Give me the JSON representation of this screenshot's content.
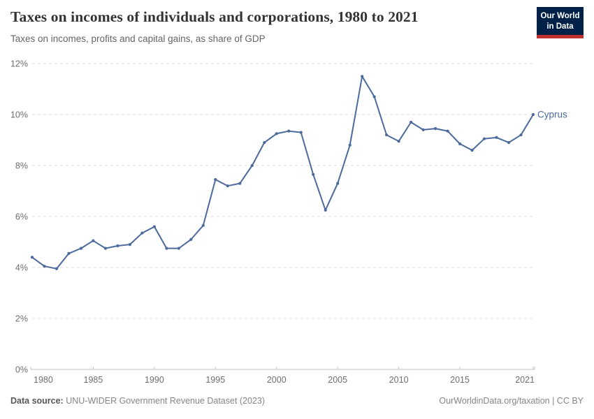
{
  "header": {
    "title": "Taxes on incomes of individuals and corporations, 1980 to 2021",
    "subtitle": "Taxes on incomes, profits and capital gains, as share of GDP",
    "logo": {
      "line1": "Our World",
      "line2": "in Data"
    }
  },
  "footer": {
    "source_label": "Data source:",
    "source_text": " UNU-WIDER Government Revenue Dataset (2023)",
    "link_text": "OurWorldinData.org/taxation | CC BY"
  },
  "colors": {
    "line": "#4C6A9C",
    "entity_label": "#4C6A9C",
    "grid": "#dddddd",
    "axis": "#c2c2c2",
    "axis_label": "#6e6e6e",
    "logo_bg": "#002147",
    "logo_red": "#c0322e"
  },
  "chart_data": {
    "type": "line",
    "title": "Taxes on incomes of individuals and corporations, 1980 to 2021",
    "subtitle": "Taxes on incomes, profits and capital gains, as share of GDP",
    "entity": "Cyprus",
    "unit": "%",
    "grid": true,
    "legend_position": "end-of-line-label",
    "xlim": [
      1980,
      2021
    ],
    "ylim": [
      0,
      12
    ],
    "xticks": [
      1980,
      1985,
      1990,
      1995,
      2000,
      2005,
      2010,
      2015,
      2021
    ],
    "yticks": [
      0,
      2,
      4,
      6,
      8,
      10,
      12
    ],
    "ytick_suffix": "%",
    "x": [
      1980,
      1981,
      1982,
      1983,
      1984,
      1985,
      1986,
      1987,
      1988,
      1989,
      1990,
      1991,
      1992,
      1993,
      1994,
      1995,
      1996,
      1997,
      1998,
      1999,
      2000,
      2001,
      2002,
      2003,
      2004,
      2005,
      2006,
      2007,
      2008,
      2009,
      2010,
      2011,
      2012,
      2013,
      2014,
      2015,
      2016,
      2017,
      2018,
      2019,
      2020,
      2021
    ],
    "series": [
      {
        "name": "Cyprus",
        "values": [
          4.4,
          4.05,
          3.95,
          4.55,
          4.75,
          5.05,
          4.75,
          4.85,
          4.9,
          5.35,
          5.6,
          4.75,
          4.75,
          5.1,
          5.65,
          7.45,
          7.2,
          7.3,
          8.0,
          8.9,
          9.25,
          9.35,
          9.3,
          7.65,
          6.25,
          7.3,
          8.8,
          11.5,
          10.7,
          9.2,
          8.95,
          9.7,
          9.4,
          9.45,
          9.35,
          8.85,
          8.6,
          9.05,
          9.1,
          8.9,
          9.2,
          10.0
        ]
      }
    ]
  }
}
